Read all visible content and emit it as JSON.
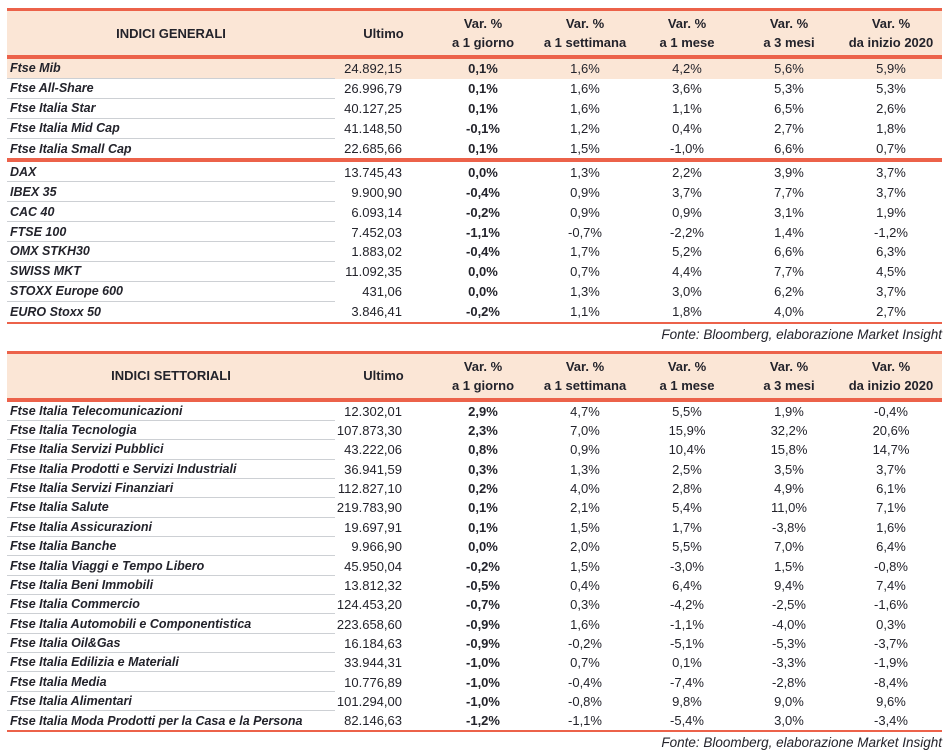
{
  "colors": {
    "accent": "#EC624A",
    "header_bg": "#FBE6D6",
    "text": "#23232B",
    "separator": "#CDD0D4"
  },
  "source_note": "Fonte: Bloomberg, elaborazione Market Insight",
  "columns": {
    "ultimo": "Ultimo",
    "var_top": "Var. %",
    "var_bottom": [
      "a 1 giorno",
      "a 1 settimana",
      "a 1 mese",
      "a 3 mesi",
      "da inizio 2020"
    ]
  },
  "tables": [
    {
      "title": "INDICI GENERALI",
      "rows": [
        {
          "name": "Ftse Mib",
          "ultimo": "24.892,15",
          "values": [
            "0,1%",
            "1,6%",
            "4,2%",
            "5,6%",
            "5,9%"
          ],
          "highlight": true
        },
        {
          "name": "Ftse All-Share",
          "ultimo": "26.996,79",
          "values": [
            "0,1%",
            "1,6%",
            "3,6%",
            "5,3%",
            "5,3%"
          ]
        },
        {
          "name": "Ftse Italia Star",
          "ultimo": "40.127,25",
          "values": [
            "0,1%",
            "1,6%",
            "1,1%",
            "6,5%",
            "2,6%"
          ]
        },
        {
          "name": "Ftse Italia Mid Cap",
          "ultimo": "41.148,50",
          "values": [
            "-0,1%",
            "1,2%",
            "0,4%",
            "2,7%",
            "1,8%"
          ]
        },
        {
          "name": "Ftse Italia Small Cap",
          "ultimo": "22.685,66",
          "values": [
            "0,1%",
            "1,5%",
            "-1,0%",
            "6,6%",
            "0,7%"
          ],
          "group_end": true
        },
        {
          "name": "DAX",
          "ultimo": "13.745,43",
          "values": [
            "0,0%",
            "1,3%",
            "2,2%",
            "3,9%",
            "3,7%"
          ]
        },
        {
          "name": "IBEX 35",
          "ultimo": "9.900,90",
          "values": [
            "-0,4%",
            "0,9%",
            "3,7%",
            "7,7%",
            "3,7%"
          ]
        },
        {
          "name": "CAC 40",
          "ultimo": "6.093,14",
          "values": [
            "-0,2%",
            "0,9%",
            "0,9%",
            "3,1%",
            "1,9%"
          ]
        },
        {
          "name": "FTSE 100",
          "ultimo": "7.452,03",
          "values": [
            "-1,1%",
            "-0,7%",
            "-2,2%",
            "1,4%",
            "-1,2%"
          ]
        },
        {
          "name": "OMX STKH30",
          "ultimo": "1.883,02",
          "values": [
            "-0,4%",
            "1,7%",
            "5,2%",
            "6,6%",
            "6,3%"
          ]
        },
        {
          "name": "SWISS MKT",
          "ultimo": "11.092,35",
          "values": [
            "0,0%",
            "0,7%",
            "4,4%",
            "7,7%",
            "4,5%"
          ]
        },
        {
          "name": "STOXX Europe 600",
          "ultimo": "431,06",
          "values": [
            "0,0%",
            "1,3%",
            "3,0%",
            "6,2%",
            "3,7%"
          ]
        },
        {
          "name": "EURO Stoxx 50",
          "ultimo": "3.846,41",
          "values": [
            "-0,2%",
            "1,1%",
            "1,8%",
            "4,0%",
            "2,7%"
          ]
        }
      ]
    },
    {
      "title": "INDICI SETTORIALI",
      "rows": [
        {
          "name": "Ftse Italia Telecomunicazioni",
          "ultimo": "12.302,01",
          "values": [
            "2,9%",
            "4,7%",
            "5,5%",
            "1,9%",
            "-0,4%"
          ]
        },
        {
          "name": "Ftse Italia Tecnologia",
          "ultimo": "107.873,30",
          "values": [
            "2,3%",
            "7,0%",
            "15,9%",
            "32,2%",
            "20,6%"
          ]
        },
        {
          "name": "Ftse Italia Servizi Pubblici",
          "ultimo": "43.222,06",
          "values": [
            "0,8%",
            "0,9%",
            "10,4%",
            "15,8%",
            "14,7%"
          ]
        },
        {
          "name": "Ftse Italia Prodotti e Servizi Industriali",
          "ultimo": "36.941,59",
          "values": [
            "0,3%",
            "1,3%",
            "2,5%",
            "3,5%",
            "3,7%"
          ]
        },
        {
          "name": "Ftse Italia Servizi Finanziari",
          "ultimo": "112.827,10",
          "values": [
            "0,2%",
            "4,0%",
            "2,8%",
            "4,9%",
            "6,1%"
          ]
        },
        {
          "name": "Ftse Italia Salute",
          "ultimo": "219.783,90",
          "values": [
            "0,1%",
            "2,1%",
            "5,4%",
            "11,0%",
            "7,1%"
          ]
        },
        {
          "name": "Ftse Italia Assicurazioni",
          "ultimo": "19.697,91",
          "values": [
            "0,1%",
            "1,5%",
            "1,7%",
            "-3,8%",
            "1,6%"
          ]
        },
        {
          "name": "Ftse Italia Banche",
          "ultimo": "9.966,90",
          "values": [
            "0,0%",
            "2,0%",
            "5,5%",
            "7,0%",
            "6,4%"
          ]
        },
        {
          "name": "Ftse Italia Viaggi e Tempo Libero",
          "ultimo": "45.950,04",
          "values": [
            "-0,2%",
            "1,5%",
            "-3,0%",
            "1,5%",
            "-0,8%"
          ]
        },
        {
          "name": "Ftse Italia Beni Immobili",
          "ultimo": "13.812,32",
          "values": [
            "-0,5%",
            "0,4%",
            "6,4%",
            "9,4%",
            "7,4%"
          ]
        },
        {
          "name": "Ftse Italia Commercio",
          "ultimo": "124.453,20",
          "values": [
            "-0,7%",
            "0,3%",
            "-4,2%",
            "-2,5%",
            "-1,6%"
          ]
        },
        {
          "name": "Ftse Italia Automobili e Componentistica",
          "ultimo": "223.658,60",
          "values": [
            "-0,9%",
            "1,6%",
            "-1,1%",
            "-4,0%",
            "0,3%"
          ]
        },
        {
          "name": "Ftse Italia Oil&Gas",
          "ultimo": "16.184,63",
          "values": [
            "-0,9%",
            "-0,2%",
            "-5,1%",
            "-5,3%",
            "-3,7%"
          ]
        },
        {
          "name": "Ftse Italia Edilizia e Materiali",
          "ultimo": "33.944,31",
          "values": [
            "-1,0%",
            "0,7%",
            "0,1%",
            "-3,3%",
            "-1,9%"
          ]
        },
        {
          "name": "Ftse Italia Media",
          "ultimo": "10.776,89",
          "values": [
            "-1,0%",
            "-0,4%",
            "-7,4%",
            "-2,8%",
            "-8,4%"
          ]
        },
        {
          "name": "Ftse Italia Alimentari",
          "ultimo": "101.294,00",
          "values": [
            "-1,0%",
            "-0,8%",
            "9,8%",
            "9,0%",
            "9,6%"
          ]
        },
        {
          "name": "Ftse Italia Moda Prodotti per la Casa e la Persona",
          "ultimo": "82.146,63",
          "values": [
            "-1,2%",
            "-1,1%",
            "-5,4%",
            "3,0%",
            "-3,4%"
          ]
        }
      ]
    }
  ]
}
